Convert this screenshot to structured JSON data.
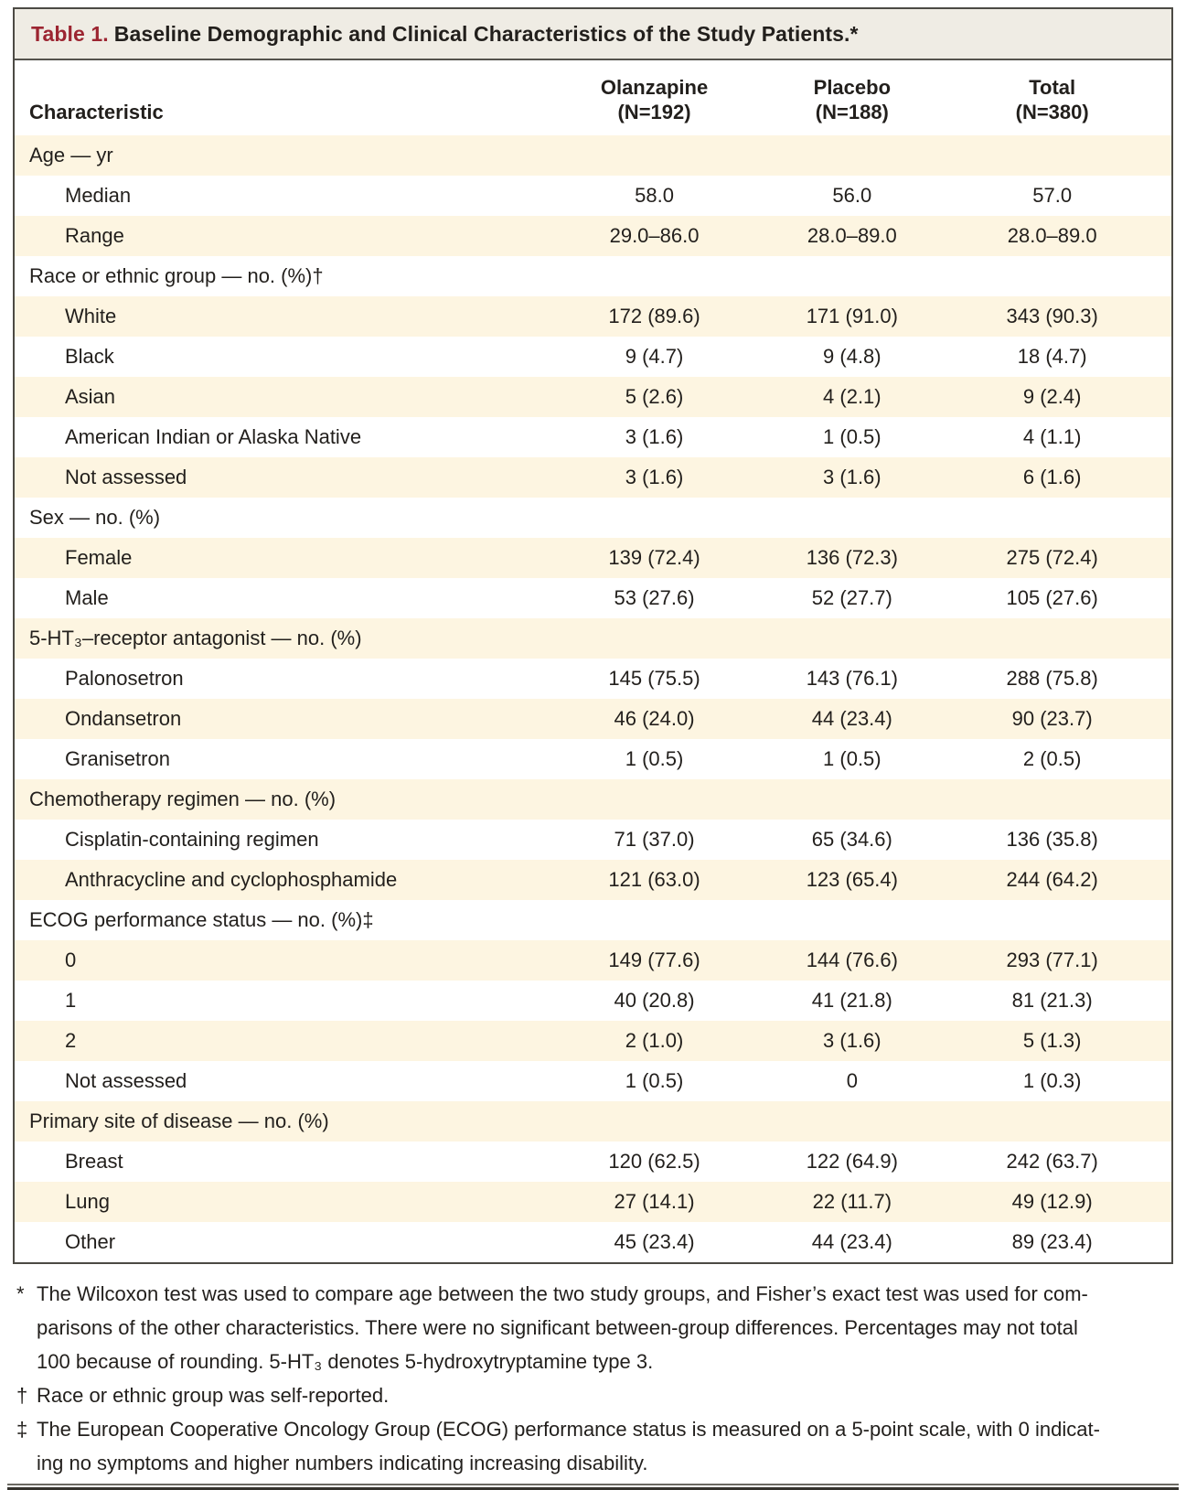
{
  "colors": {
    "accent_red": "#9c2531",
    "row_shade": "#fdf5e1",
    "title_bar": "#efece4",
    "border": "#4c4a44",
    "text": "#221f1c"
  },
  "table": {
    "title_prefix": "Table 1.",
    "title": "Baseline Demographic and Clinical Characteristics of the Study Patients.*",
    "columns": {
      "characteristic": "Characteristic",
      "groups": [
        {
          "name": "Olanzapine",
          "n": "(N=192)"
        },
        {
          "name": "Placebo",
          "n": "(N=188)"
        },
        {
          "name": "Total",
          "n": "(N=380)"
        }
      ]
    },
    "rows": [
      {
        "label": "Age — yr",
        "indent": false,
        "values": []
      },
      {
        "label": "Median",
        "indent": true,
        "values": [
          "58.0",
          "56.0",
          "57.0"
        ]
      },
      {
        "label": "Range",
        "indent": true,
        "values": [
          "29.0–86.0",
          "28.0–89.0",
          "28.0–89.0"
        ]
      },
      {
        "label": "Race or ethnic group — no. (%)†",
        "indent": false,
        "values": []
      },
      {
        "label": "White",
        "indent": true,
        "values": [
          "172 (89.6)",
          "171 (91.0)",
          "343 (90.3)"
        ]
      },
      {
        "label": "Black",
        "indent": true,
        "values": [
          "9 (4.7)",
          "9 (4.8)",
          "18 (4.7)"
        ]
      },
      {
        "label": "Asian",
        "indent": true,
        "values": [
          "5 (2.6)",
          "4 (2.1)",
          "9 (2.4)"
        ]
      },
      {
        "label": "American Indian or Alaska Native",
        "indent": true,
        "values": [
          "3 (1.6)",
          "1 (0.5)",
          "4 (1.1)"
        ]
      },
      {
        "label": "Not assessed",
        "indent": true,
        "values": [
          "3 (1.6)",
          "3 (1.6)",
          "6 (1.6)"
        ]
      },
      {
        "label": "Sex — no. (%)",
        "indent": false,
        "values": []
      },
      {
        "label": "Female",
        "indent": true,
        "values": [
          "139 (72.4)",
          "136 (72.3)",
          "275 (72.4)"
        ]
      },
      {
        "label": "Male",
        "indent": true,
        "values": [
          "53 (27.6)",
          "52 (27.7)",
          "105 (27.6)"
        ]
      },
      {
        "label": "5-HT₃–receptor antagonist — no. (%)",
        "indent": false,
        "values": []
      },
      {
        "label": "Palonosetron",
        "indent": true,
        "values": [
          "145 (75.5)",
          "143 (76.1)",
          "288 (75.8)"
        ]
      },
      {
        "label": "Ondansetron",
        "indent": true,
        "values": [
          "46 (24.0)",
          "44 (23.4)",
          "90 (23.7)"
        ]
      },
      {
        "label": "Granisetron",
        "indent": true,
        "values": [
          "1 (0.5)",
          "1 (0.5)",
          "2 (0.5)"
        ]
      },
      {
        "label": "Chemotherapy regimen — no. (%)",
        "indent": false,
        "values": []
      },
      {
        "label": "Cisplatin-containing regimen",
        "indent": true,
        "values": [
          "71 (37.0)",
          "65 (34.6)",
          "136 (35.8)"
        ]
      },
      {
        "label": "Anthracycline and cyclophosphamide",
        "indent": true,
        "values": [
          "121 (63.0)",
          "123 (65.4)",
          "244 (64.2)"
        ]
      },
      {
        "label": "ECOG performance status — no. (%)‡",
        "indent": false,
        "values": []
      },
      {
        "label": "0",
        "indent": true,
        "values": [
          "149 (77.6)",
          "144 (76.6)",
          "293 (77.1)"
        ]
      },
      {
        "label": "1",
        "indent": true,
        "values": [
          "40 (20.8)",
          "41 (21.8)",
          "81 (21.3)"
        ]
      },
      {
        "label": "2",
        "indent": true,
        "values": [
          "2 (1.0)",
          "3 (1.6)",
          "5 (1.3)"
        ]
      },
      {
        "label": "Not assessed",
        "indent": true,
        "values": [
          "1 (0.5)",
          "0",
          "1 (0.3)"
        ]
      },
      {
        "label": "Primary site of disease — no. (%)",
        "indent": false,
        "values": []
      },
      {
        "label": "Breast",
        "indent": true,
        "values": [
          "120 (62.5)",
          "122 (64.9)",
          "242 (63.7)"
        ]
      },
      {
        "label": "Lung",
        "indent": true,
        "values": [
          "27 (14.1)",
          "22 (11.7)",
          "49 (12.9)"
        ]
      },
      {
        "label": "Other",
        "indent": true,
        "values": [
          "45 (23.4)",
          "44 (23.4)",
          "89 (23.4)"
        ]
      }
    ]
  },
  "footnotes": [
    {
      "marker": "*",
      "lines": [
        "The Wilcoxon test was used to compare age between the two study groups, and Fisher’s exact test was used for com-",
        "parisons of the other characteristics. There were no significant between-group differences. Percentages may not total",
        "100 because of rounding. 5-HT₃ denotes 5-hydroxytryptamine type 3."
      ]
    },
    {
      "marker": "†",
      "lines": [
        "Race or ethnic group was self-reported."
      ]
    },
    {
      "marker": "‡",
      "lines": [
        "The European Cooperative Oncology Group (ECOG) performance status is measured on a 5-point scale, with 0 indicat-",
        "ing no symptoms and higher numbers indicating increasing disability."
      ]
    }
  ]
}
